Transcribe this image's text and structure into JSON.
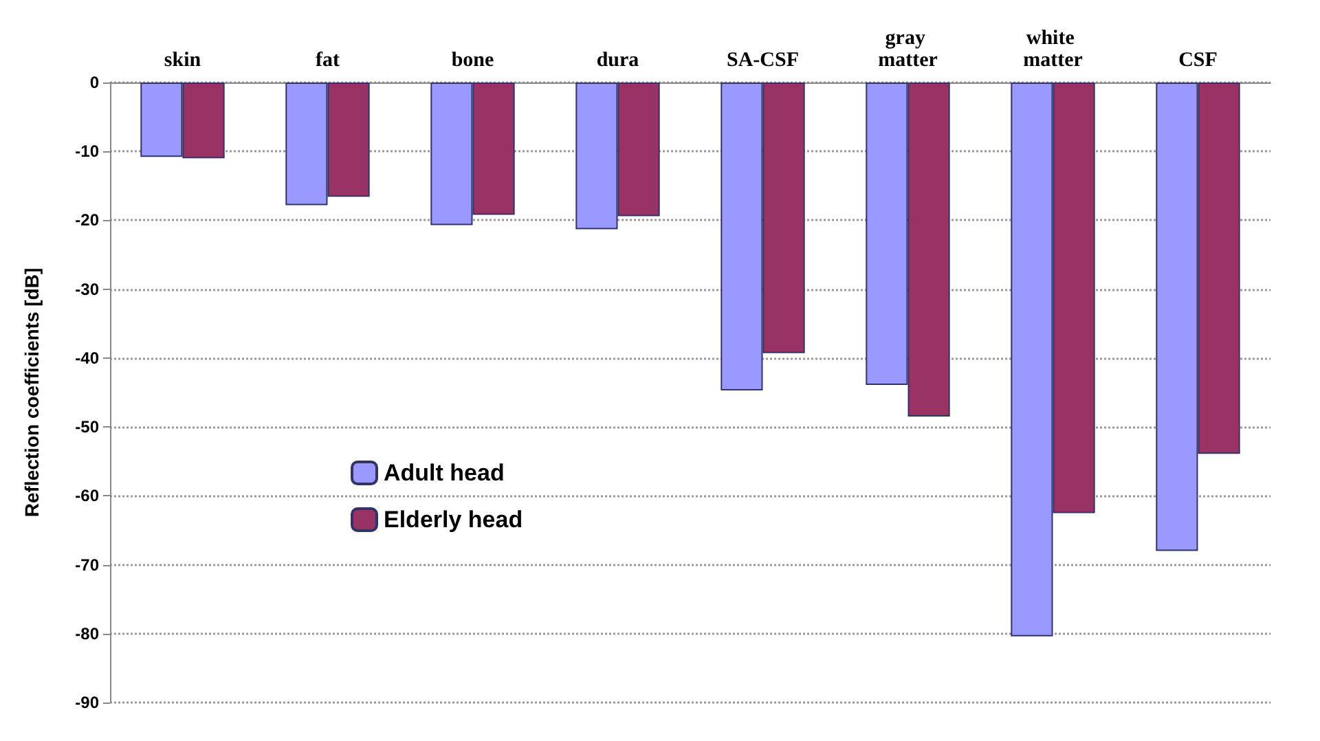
{
  "chart_data": {
    "type": "bar",
    "ylabel": "Reflection coefficients [dB]",
    "categories": [
      "skin",
      "fat",
      "bone",
      "dura",
      "SA-CSF",
      "gray matter",
      "white matter",
      "CSF"
    ],
    "series": [
      {
        "name": "Adult head",
        "color": "#9999ff",
        "values": [
          -10.8,
          -17.8,
          -20.7,
          -21.3,
          -44.7,
          -43.9,
          -80.4,
          -68
        ]
      },
      {
        "name": "Elderly head",
        "color": "#993366",
        "values": [
          -11,
          -16.6,
          -19.2,
          -19.4,
          -39.3,
          -48.5,
          -62.5,
          -53.9
        ]
      }
    ],
    "ylim": [
      -90,
      0
    ],
    "yticks": [
      0,
      -10,
      -20,
      -30,
      -40,
      -50,
      -60,
      -70,
      -80,
      -90
    ],
    "grid": "y",
    "legend": "left"
  }
}
